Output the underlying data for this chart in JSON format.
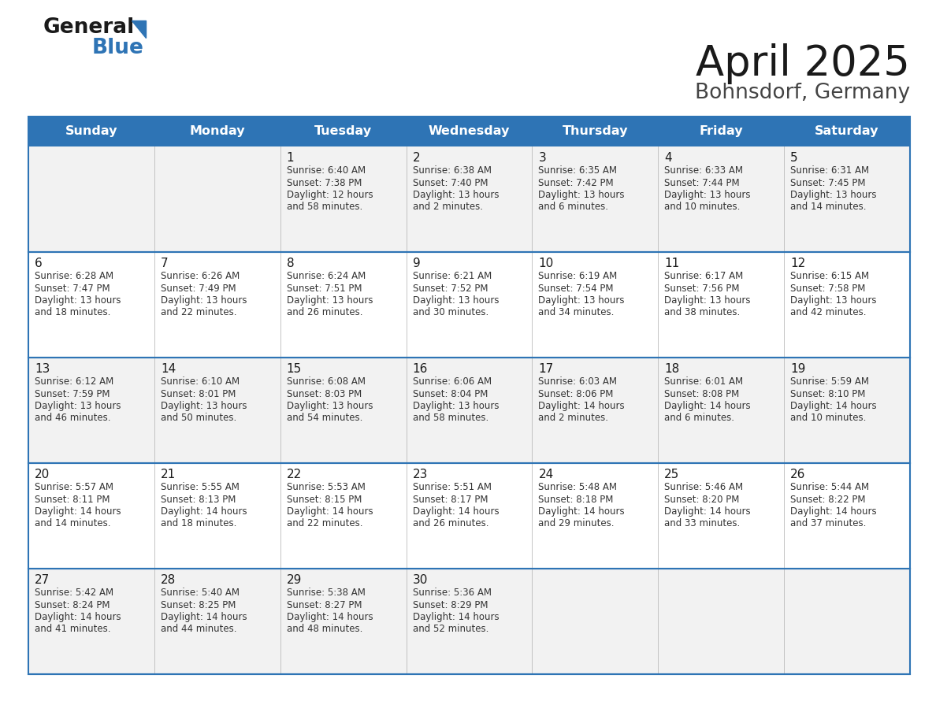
{
  "title": "April 2025",
  "subtitle": "Bohnsdorf, Germany",
  "header_color": "#2E74B5",
  "header_text_color": "#FFFFFF",
  "border_color": "#2E74B5",
  "text_color": "#333333",
  "day_headers": [
    "Sunday",
    "Monday",
    "Tuesday",
    "Wednesday",
    "Thursday",
    "Friday",
    "Saturday"
  ],
  "row0_bg": "#F2F2F2",
  "row1_bg": "#FFFFFF",
  "days": [
    {
      "day": 1,
      "col": 2,
      "row": 0,
      "sunrise": "6:40 AM",
      "sunset": "7:38 PM",
      "daylight_h": "12 hours",
      "daylight_m": "58 minutes."
    },
    {
      "day": 2,
      "col": 3,
      "row": 0,
      "sunrise": "6:38 AM",
      "sunset": "7:40 PM",
      "daylight_h": "13 hours",
      "daylight_m": "2 minutes."
    },
    {
      "day": 3,
      "col": 4,
      "row": 0,
      "sunrise": "6:35 AM",
      "sunset": "7:42 PM",
      "daylight_h": "13 hours",
      "daylight_m": "6 minutes."
    },
    {
      "day": 4,
      "col": 5,
      "row": 0,
      "sunrise": "6:33 AM",
      "sunset": "7:44 PM",
      "daylight_h": "13 hours",
      "daylight_m": "10 minutes."
    },
    {
      "day": 5,
      "col": 6,
      "row": 0,
      "sunrise": "6:31 AM",
      "sunset": "7:45 PM",
      "daylight_h": "13 hours",
      "daylight_m": "14 minutes."
    },
    {
      "day": 6,
      "col": 0,
      "row": 1,
      "sunrise": "6:28 AM",
      "sunset": "7:47 PM",
      "daylight_h": "13 hours",
      "daylight_m": "18 minutes."
    },
    {
      "day": 7,
      "col": 1,
      "row": 1,
      "sunrise": "6:26 AM",
      "sunset": "7:49 PM",
      "daylight_h": "13 hours",
      "daylight_m": "22 minutes."
    },
    {
      "day": 8,
      "col": 2,
      "row": 1,
      "sunrise": "6:24 AM",
      "sunset": "7:51 PM",
      "daylight_h": "13 hours",
      "daylight_m": "26 minutes."
    },
    {
      "day": 9,
      "col": 3,
      "row": 1,
      "sunrise": "6:21 AM",
      "sunset": "7:52 PM",
      "daylight_h": "13 hours",
      "daylight_m": "30 minutes."
    },
    {
      "day": 10,
      "col": 4,
      "row": 1,
      "sunrise": "6:19 AM",
      "sunset": "7:54 PM",
      "daylight_h": "13 hours",
      "daylight_m": "34 minutes."
    },
    {
      "day": 11,
      "col": 5,
      "row": 1,
      "sunrise": "6:17 AM",
      "sunset": "7:56 PM",
      "daylight_h": "13 hours",
      "daylight_m": "38 minutes."
    },
    {
      "day": 12,
      "col": 6,
      "row": 1,
      "sunrise": "6:15 AM",
      "sunset": "7:58 PM",
      "daylight_h": "13 hours",
      "daylight_m": "42 minutes."
    },
    {
      "day": 13,
      "col": 0,
      "row": 2,
      "sunrise": "6:12 AM",
      "sunset": "7:59 PM",
      "daylight_h": "13 hours",
      "daylight_m": "46 minutes."
    },
    {
      "day": 14,
      "col": 1,
      "row": 2,
      "sunrise": "6:10 AM",
      "sunset": "8:01 PM",
      "daylight_h": "13 hours",
      "daylight_m": "50 minutes."
    },
    {
      "day": 15,
      "col": 2,
      "row": 2,
      "sunrise": "6:08 AM",
      "sunset": "8:03 PM",
      "daylight_h": "13 hours",
      "daylight_m": "54 minutes."
    },
    {
      "day": 16,
      "col": 3,
      "row": 2,
      "sunrise": "6:06 AM",
      "sunset": "8:04 PM",
      "daylight_h": "13 hours",
      "daylight_m": "58 minutes."
    },
    {
      "day": 17,
      "col": 4,
      "row": 2,
      "sunrise": "6:03 AM",
      "sunset": "8:06 PM",
      "daylight_h": "14 hours",
      "daylight_m": "2 minutes."
    },
    {
      "day": 18,
      "col": 5,
      "row": 2,
      "sunrise": "6:01 AM",
      "sunset": "8:08 PM",
      "daylight_h": "14 hours",
      "daylight_m": "6 minutes."
    },
    {
      "day": 19,
      "col": 6,
      "row": 2,
      "sunrise": "5:59 AM",
      "sunset": "8:10 PM",
      "daylight_h": "14 hours",
      "daylight_m": "10 minutes."
    },
    {
      "day": 20,
      "col": 0,
      "row": 3,
      "sunrise": "5:57 AM",
      "sunset": "8:11 PM",
      "daylight_h": "14 hours",
      "daylight_m": "14 minutes."
    },
    {
      "day": 21,
      "col": 1,
      "row": 3,
      "sunrise": "5:55 AM",
      "sunset": "8:13 PM",
      "daylight_h": "14 hours",
      "daylight_m": "18 minutes."
    },
    {
      "day": 22,
      "col": 2,
      "row": 3,
      "sunrise": "5:53 AM",
      "sunset": "8:15 PM",
      "daylight_h": "14 hours",
      "daylight_m": "22 minutes."
    },
    {
      "day": 23,
      "col": 3,
      "row": 3,
      "sunrise": "5:51 AM",
      "sunset": "8:17 PM",
      "daylight_h": "14 hours",
      "daylight_m": "26 minutes."
    },
    {
      "day": 24,
      "col": 4,
      "row": 3,
      "sunrise": "5:48 AM",
      "sunset": "8:18 PM",
      "daylight_h": "14 hours",
      "daylight_m": "29 minutes."
    },
    {
      "day": 25,
      "col": 5,
      "row": 3,
      "sunrise": "5:46 AM",
      "sunset": "8:20 PM",
      "daylight_h": "14 hours",
      "daylight_m": "33 minutes."
    },
    {
      "day": 26,
      "col": 6,
      "row": 3,
      "sunrise": "5:44 AM",
      "sunset": "8:22 PM",
      "daylight_h": "14 hours",
      "daylight_m": "37 minutes."
    },
    {
      "day": 27,
      "col": 0,
      "row": 4,
      "sunrise": "5:42 AM",
      "sunset": "8:24 PM",
      "daylight_h": "14 hours",
      "daylight_m": "41 minutes."
    },
    {
      "day": 28,
      "col": 1,
      "row": 4,
      "sunrise": "5:40 AM",
      "sunset": "8:25 PM",
      "daylight_h": "14 hours",
      "daylight_m": "44 minutes."
    },
    {
      "day": 29,
      "col": 2,
      "row": 4,
      "sunrise": "5:38 AM",
      "sunset": "8:27 PM",
      "daylight_h": "14 hours",
      "daylight_m": "48 minutes."
    },
    {
      "day": 30,
      "col": 3,
      "row": 4,
      "sunrise": "5:36 AM",
      "sunset": "8:29 PM",
      "daylight_h": "14 hours",
      "daylight_m": "52 minutes."
    }
  ]
}
